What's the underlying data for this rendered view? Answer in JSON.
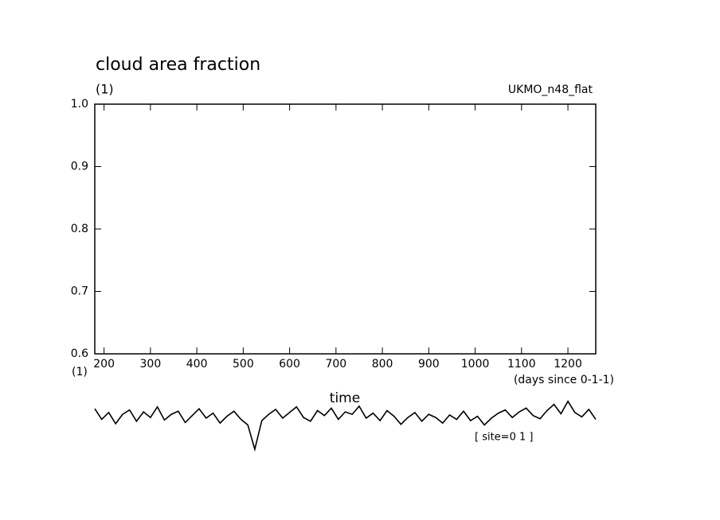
{
  "chart_data": {
    "type": "line",
    "title": "cloud area fraction",
    "y_unit": "(1)",
    "x_unit": "(1)",
    "source": "UKMO_n48_flat",
    "x_label": "(days since 0-1-1)",
    "time_label": "time",
    "site_label": "[ site=0 1 ]",
    "x": [
      180,
      195,
      210,
      225,
      240,
      255,
      270,
      285,
      300,
      315,
      330,
      345,
      360,
      375,
      390,
      405,
      420,
      435,
      450,
      465,
      480,
      495,
      510,
      525,
      540,
      555,
      570,
      585,
      600,
      615,
      630,
      645,
      660,
      675,
      690,
      705,
      720,
      735,
      750,
      765,
      780,
      795,
      810,
      825,
      840,
      855,
      870,
      885,
      900,
      915,
      930,
      945,
      960,
      975,
      990,
      1005,
      1020,
      1035,
      1050,
      1065,
      1080,
      1095,
      1110,
      1125,
      1140,
      1155,
      1170,
      1185,
      1200,
      1215,
      1230,
      1245,
      1260
    ],
    "series": [
      {
        "color": "#000000",
        "values": [
          0.512,
          0.495,
          0.506,
          0.488,
          0.503,
          0.51,
          0.492,
          0.507,
          0.498,
          0.515,
          0.494,
          0.503,
          0.508,
          0.49,
          0.501,
          0.512,
          0.497,
          0.505,
          0.489,
          0.5,
          0.508,
          0.495,
          0.486,
          0.447,
          0.493,
          0.503,
          0.511,
          0.497,
          0.506,
          0.515,
          0.498,
          0.492,
          0.509,
          0.501,
          0.513,
          0.495,
          0.507,
          0.503,
          0.516,
          0.497,
          0.505,
          0.493,
          0.509,
          0.5,
          0.487,
          0.498,
          0.506,
          0.492,
          0.503,
          0.498,
          0.489,
          0.502,
          0.495,
          0.508,
          0.493,
          0.5,
          0.486,
          0.497,
          0.505,
          0.51,
          0.498,
          0.507,
          0.513,
          0.501,
          0.496,
          0.509,
          0.519,
          0.504,
          0.524,
          0.506,
          0.499,
          0.511,
          0.495
        ]
      }
    ],
    "xlim": [
      180,
      1260
    ],
    "ylim": [
      0.6,
      1
    ],
    "xticks": [
      200,
      300,
      400,
      500,
      600,
      700,
      800,
      900,
      1000,
      1100,
      1200
    ],
    "yticks": [
      0.6,
      0.7,
      0.8,
      0.9,
      {
        "value": 1,
        "label": "1.0"
      }
    ]
  }
}
